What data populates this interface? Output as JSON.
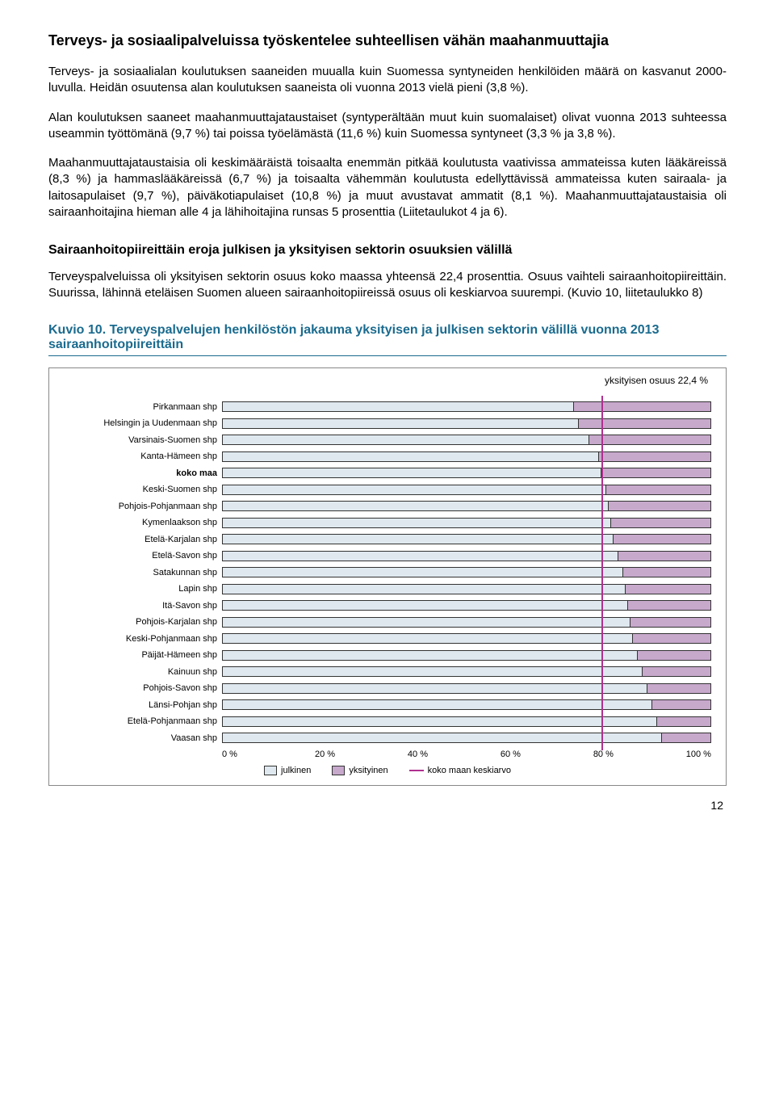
{
  "section1": {
    "title": "Terveys- ja sosiaalipalveluissa työskentelee suhteellisen vähän maahanmuuttajia",
    "p1": "Terveys- ja sosiaalialan koulutuksen saaneiden muualla kuin Suomessa syntyneiden henkilöiden määrä on kasvanut 2000-luvulla. Heidän osuutensa alan koulutuksen saaneista oli vuonna 2013 vielä pieni (3,8 %).",
    "p2": "Alan koulutuksen saaneet maahanmuuttajataustaiset (syntyperältään muut kuin suomalaiset) olivat vuonna 2013 suhteessa useammin työttömänä (9,7 %) tai poissa työelämästä (11,6 %) kuin Suomessa syntyneet (3,3 % ja 3,8 %).",
    "p3": "Maahanmuuttajataustaisia oli keskimääräistä toisaalta enemmän pitkää koulutusta vaativissa ammateissa kuten lääkäreissä (8,3 %) ja hammaslääkäreissä (6,7 %) ja toisaalta vähemmän koulutusta edellyttävissä ammateissa kuten sairaala- ja laitosapulaiset (9,7 %), päiväkotiapulaiset (10,8 %) ja muut avustavat ammatit (8,1 %). Maahanmuuttajataustaisia oli sairaanhoitajina hieman alle 4 ja lähihoitajina runsas 5 prosenttia (Liitetaulukot 4 ja 6)."
  },
  "section2": {
    "title": "Sairaanhoitopiireittäin eroja julkisen ja yksityisen sektorin osuuksien välillä",
    "p1": "Terveyspalveluissa oli yksityisen sektorin osuus koko maassa yhteensä 22,4 prosenttia. Osuus vaihteli sairaanhoitopiireittäin. Suurissa, lähinnä eteläisen Suomen alueen sairaanhoitopiireissä osuus oli keskiarvoa suurempi. (Kuvio 10, liitetaulukko 8)"
  },
  "figure": {
    "title": "Kuvio 10. Terveyspalvelujen henkilöstön jakauma yksityisen ja julkisen sektorin välillä vuonna 2013 sairaanhoitopiireittäin",
    "note": "yksityisen osuus 22,4 %",
    "avg_line_pct": 77.6,
    "colors": {
      "public": "#dfe8ef",
      "private": "#c7a9cc",
      "avg_line": "#b03090",
      "border": "#333333"
    },
    "rows": [
      {
        "label": "Pirkanmaan shp",
        "public": 72,
        "bold": false
      },
      {
        "label": "Helsingin ja Uudenmaan shp",
        "public": 73,
        "bold": false
      },
      {
        "label": "Varsinais-Suomen shp",
        "public": 75,
        "bold": false
      },
      {
        "label": "Kanta-Hämeen shp",
        "public": 77,
        "bold": false
      },
      {
        "label": "koko maa",
        "public": 77.6,
        "bold": true
      },
      {
        "label": "Keski-Suomen shp",
        "public": 78.5,
        "bold": false
      },
      {
        "label": "Pohjois-Pohjanmaan shp",
        "public": 79,
        "bold": false
      },
      {
        "label": "Kymenlaakson shp",
        "public": 79.5,
        "bold": false
      },
      {
        "label": "Etelä-Karjalan shp",
        "public": 80,
        "bold": false
      },
      {
        "label": "Etelä-Savon shp",
        "public": 81,
        "bold": false
      },
      {
        "label": "Satakunnan shp",
        "public": 82,
        "bold": false
      },
      {
        "label": "Lapin shp",
        "public": 82.5,
        "bold": false
      },
      {
        "label": "Itä-Savon shp",
        "public": 83,
        "bold": false
      },
      {
        "label": "Pohjois-Karjalan shp",
        "public": 83.5,
        "bold": false
      },
      {
        "label": "Keski-Pohjanmaan shp",
        "public": 84,
        "bold": false
      },
      {
        "label": "Päijät-Hämeen shp",
        "public": 85,
        "bold": false
      },
      {
        "label": "Kainuun shp",
        "public": 86,
        "bold": false
      },
      {
        "label": "Pohjois-Savon shp",
        "public": 87,
        "bold": false
      },
      {
        "label": "Länsi-Pohjan shp",
        "public": 88,
        "bold": false
      },
      {
        "label": "Etelä-Pohjanmaan shp",
        "public": 89,
        "bold": false
      },
      {
        "label": "Vaasan shp",
        "public": 90,
        "bold": false
      }
    ],
    "xticks": [
      "0 %",
      "20 %",
      "40 %",
      "60 %",
      "80 %",
      "100 %"
    ],
    "legend": {
      "public": "julkinen",
      "private": "yksityinen",
      "avg": "koko maan keskiarvo"
    }
  },
  "pagenum": "12"
}
